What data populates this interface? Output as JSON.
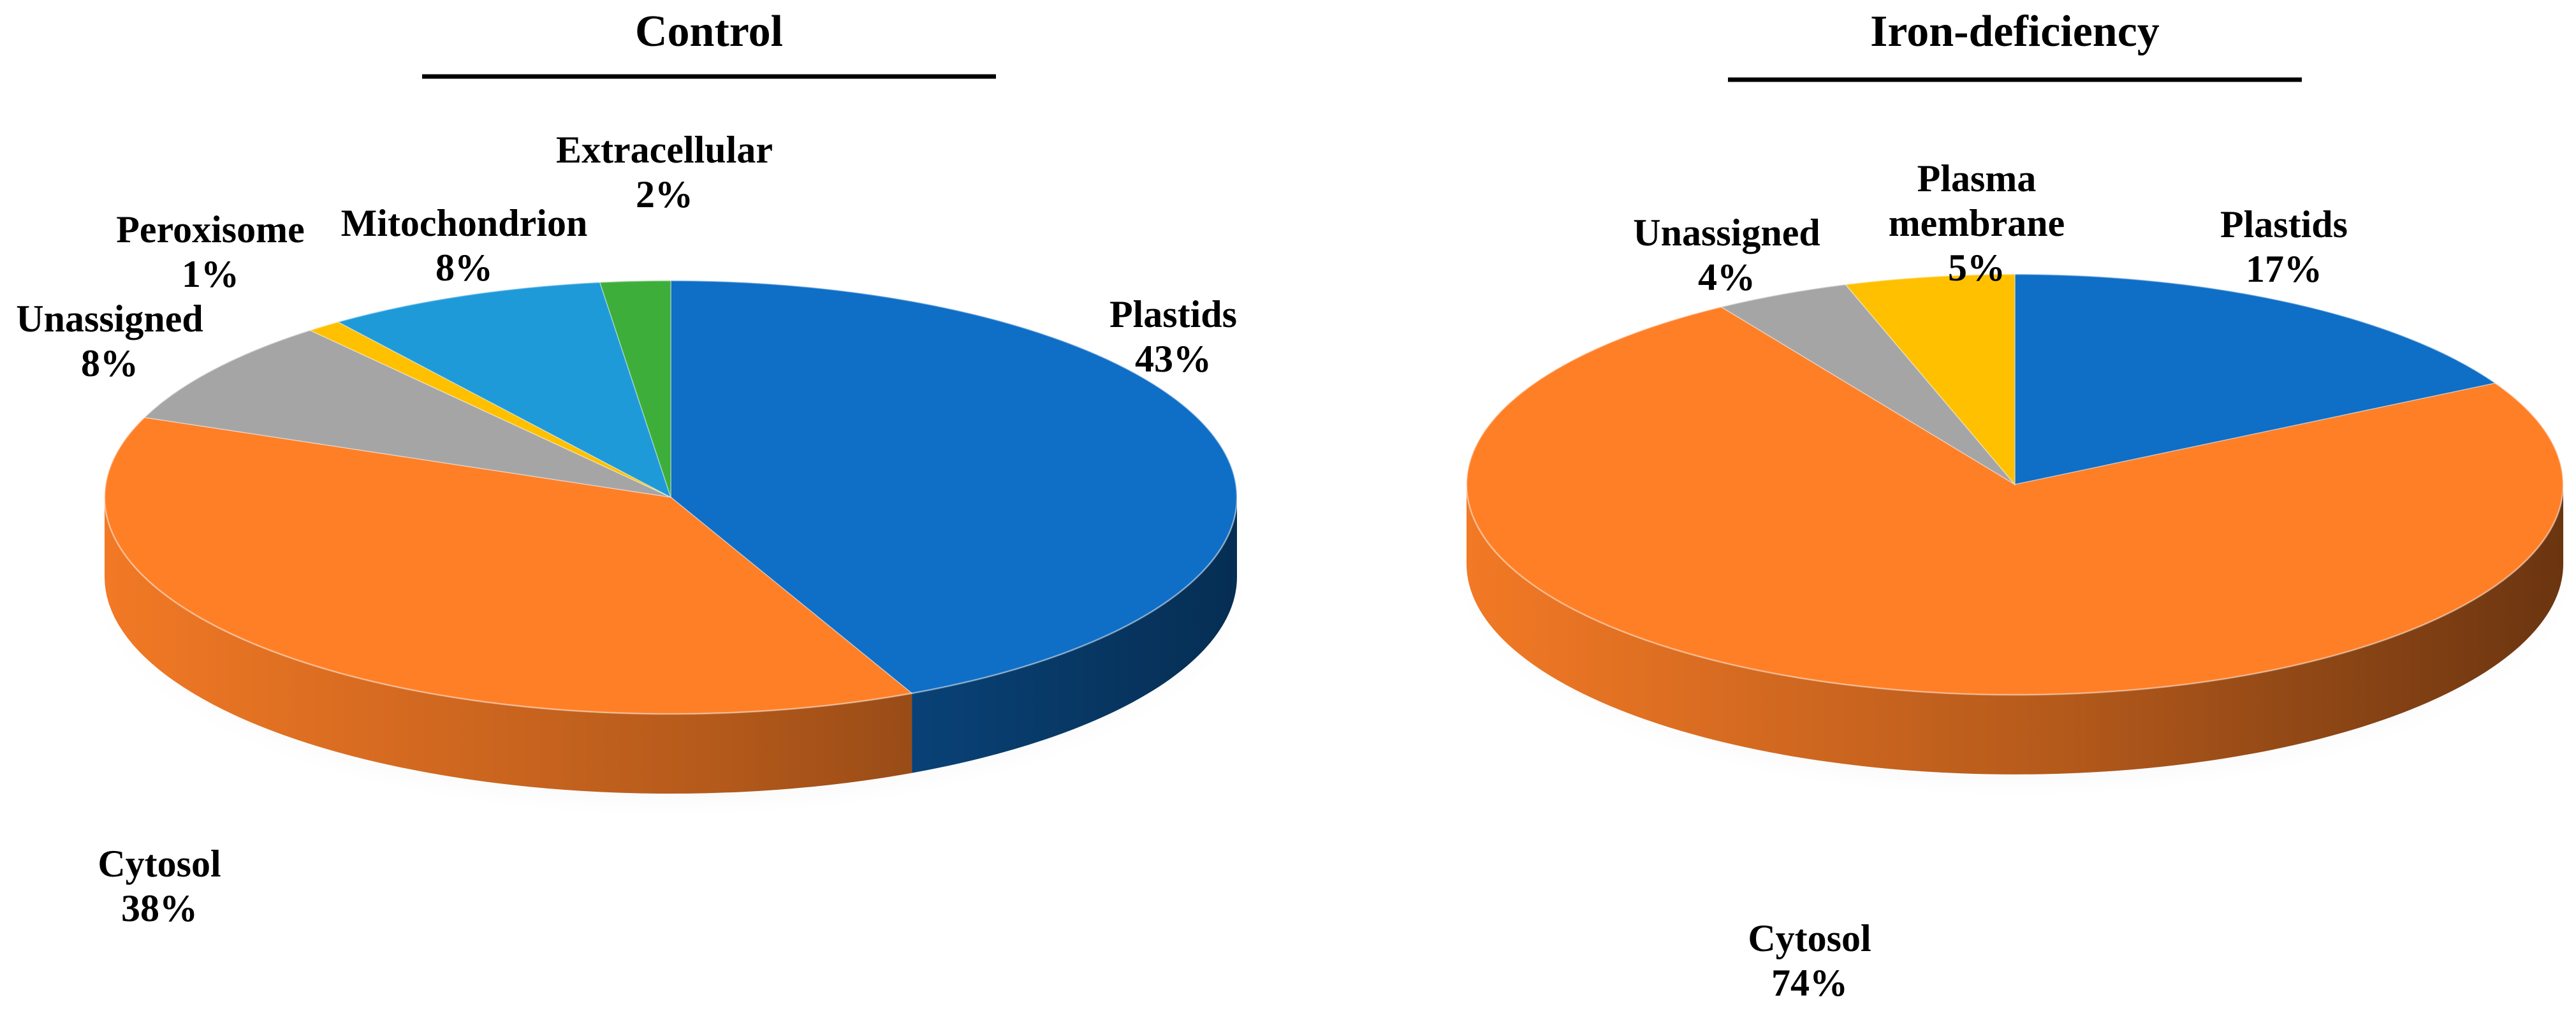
{
  "chart_data": [
    {
      "type": "pie",
      "title": "Control",
      "slices": [
        {
          "label": "Plastids",
          "value": 43,
          "value_label": "43%",
          "color": "#0F6EC6"
        },
        {
          "label": "Cytosol",
          "value": 38,
          "value_label": "38%",
          "color": "#FF7F27"
        },
        {
          "label": "Unassigned",
          "value": 8,
          "value_label": "8%",
          "color": "#A5A5A5"
        },
        {
          "label": "Peroxisome",
          "value": 1,
          "value_label": "1%",
          "color": "#FFC000"
        },
        {
          "label": "Mitochondrion",
          "value": 8,
          "value_label": "8%",
          "color": "#1F9AD9"
        },
        {
          "label": "Extracellular",
          "value": 2,
          "value_label": "2%",
          "color": "#3DAE3A"
        }
      ]
    },
    {
      "type": "pie",
      "title": "Iron-deficiency",
      "slices": [
        {
          "label": "Plastids",
          "value": 17,
          "value_label": "17%",
          "color": "#0F6EC6"
        },
        {
          "label": "Cytosol",
          "value": 74,
          "value_label": "74%",
          "color": "#FF7F27"
        },
        {
          "label": "Unassigned",
          "value": 4,
          "value_label": "4%",
          "color": "#A5A5A5"
        },
        {
          "label": "Plasma membrane",
          "value": 5,
          "value_label": "5%",
          "color": "#FFC000"
        }
      ]
    }
  ]
}
